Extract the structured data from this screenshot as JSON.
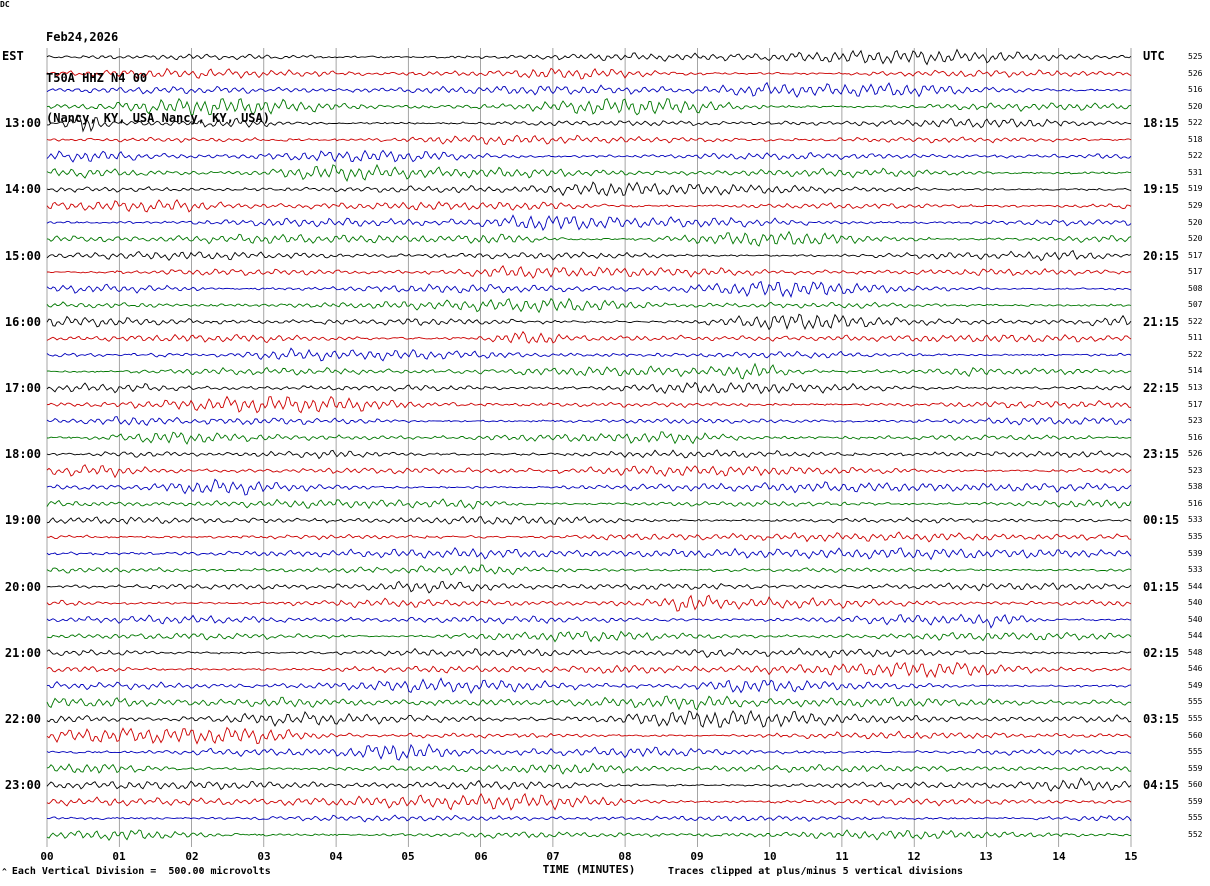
{
  "header": {
    "date": "Feb24,2026",
    "station": "T50A HHZ N4 00",
    "location": "(Nancy, KY, USA Nancy, KY, USA)"
  },
  "axis": {
    "left_title": "EST",
    "right_title": "UTC",
    "dc_title": "DC",
    "x_title": "TIME (MINUTES)"
  },
  "footer": {
    "marker": "^",
    "scale_note": "Each Vertical Division =  500.00 microvolts",
    "clip_note": "Traces clipped at plus/minus 5 vertical divisions"
  },
  "colors": {
    "background": "#ffffff",
    "text": "#000000",
    "grid": "#7f7f7f"
  },
  "chart_data": {
    "type": "line",
    "subtype": "helicorder_seismogram",
    "title": "T50A HHZ N4 00 (Nancy, KY, USA)",
    "date": "Feb24,2026",
    "xlabel": "TIME (MINUTES)",
    "x_range_minutes": [
      0,
      15
    ],
    "x_ticks": [
      "00",
      "01",
      "02",
      "03",
      "04",
      "05",
      "06",
      "07",
      "08",
      "09",
      "10",
      "11",
      "12",
      "13",
      "14",
      "15"
    ],
    "minutes_per_row": 15,
    "row_count": 48,
    "trace_color_cycle": [
      "#000000",
      "#cc0000",
      "#0000bb",
      "#007700"
    ],
    "amplitude_scale": "Each Vertical Division = 500.00 microvolts",
    "clipping": "Traces clipped at plus/minus 5 vertical divisions",
    "events": [
      {
        "row": 4,
        "frac": 0.035,
        "w": 16,
        "amp": 5.0
      }
    ],
    "rows": [
      {
        "est": "",
        "utc": "",
        "dc": "525"
      },
      {
        "est": "",
        "utc": "",
        "dc": "526"
      },
      {
        "est": "",
        "utc": "",
        "dc": "516"
      },
      {
        "est": "",
        "utc": "",
        "dc": "520"
      },
      {
        "est": "13:00",
        "utc": "18:15",
        "dc": "522"
      },
      {
        "est": "",
        "utc": "",
        "dc": "518"
      },
      {
        "est": "",
        "utc": "",
        "dc": "522"
      },
      {
        "est": "",
        "utc": "",
        "dc": "531"
      },
      {
        "est": "14:00",
        "utc": "19:15",
        "dc": "519"
      },
      {
        "est": "",
        "utc": "",
        "dc": "529"
      },
      {
        "est": "",
        "utc": "",
        "dc": "520"
      },
      {
        "est": "",
        "utc": "",
        "dc": "520"
      },
      {
        "est": "15:00",
        "utc": "20:15",
        "dc": "517"
      },
      {
        "est": "",
        "utc": "",
        "dc": "517"
      },
      {
        "est": "",
        "utc": "",
        "dc": "508"
      },
      {
        "est": "",
        "utc": "",
        "dc": "507"
      },
      {
        "est": "16:00",
        "utc": "21:15",
        "dc": "522"
      },
      {
        "est": "",
        "utc": "",
        "dc": "511"
      },
      {
        "est": "",
        "utc": "",
        "dc": "522"
      },
      {
        "est": "",
        "utc": "",
        "dc": "514"
      },
      {
        "est": "17:00",
        "utc": "22:15",
        "dc": "513"
      },
      {
        "est": "",
        "utc": "",
        "dc": "517"
      },
      {
        "est": "",
        "utc": "",
        "dc": "523"
      },
      {
        "est": "",
        "utc": "",
        "dc": "516"
      },
      {
        "est": "18:00",
        "utc": "23:15",
        "dc": "526"
      },
      {
        "est": "",
        "utc": "",
        "dc": "523"
      },
      {
        "est": "",
        "utc": "",
        "dc": "538"
      },
      {
        "est": "",
        "utc": "",
        "dc": "516"
      },
      {
        "est": "19:00",
        "utc": "00:15",
        "dc": "533"
      },
      {
        "est": "",
        "utc": "",
        "dc": "535"
      },
      {
        "est": "",
        "utc": "",
        "dc": "539"
      },
      {
        "est": "",
        "utc": "",
        "dc": "533"
      },
      {
        "est": "20:00",
        "utc": "01:15",
        "dc": "544"
      },
      {
        "est": "",
        "utc": "",
        "dc": "540"
      },
      {
        "est": "",
        "utc": "",
        "dc": "540"
      },
      {
        "est": "",
        "utc": "",
        "dc": "544"
      },
      {
        "est": "21:00",
        "utc": "02:15",
        "dc": "548"
      },
      {
        "est": "",
        "utc": "",
        "dc": "546"
      },
      {
        "est": "",
        "utc": "",
        "dc": "549"
      },
      {
        "est": "",
        "utc": "",
        "dc": "555"
      },
      {
        "est": "22:00",
        "utc": "03:15",
        "dc": "555"
      },
      {
        "est": "",
        "utc": "",
        "dc": "560"
      },
      {
        "est": "",
        "utc": "",
        "dc": "555"
      },
      {
        "est": "",
        "utc": "",
        "dc": "559"
      },
      {
        "est": "23:00",
        "utc": "04:15",
        "dc": "560"
      },
      {
        "est": "",
        "utc": "",
        "dc": "559"
      },
      {
        "est": "",
        "utc": "",
        "dc": "555"
      },
      {
        "est": "",
        "utc": "",
        "dc": "552"
      }
    ]
  }
}
